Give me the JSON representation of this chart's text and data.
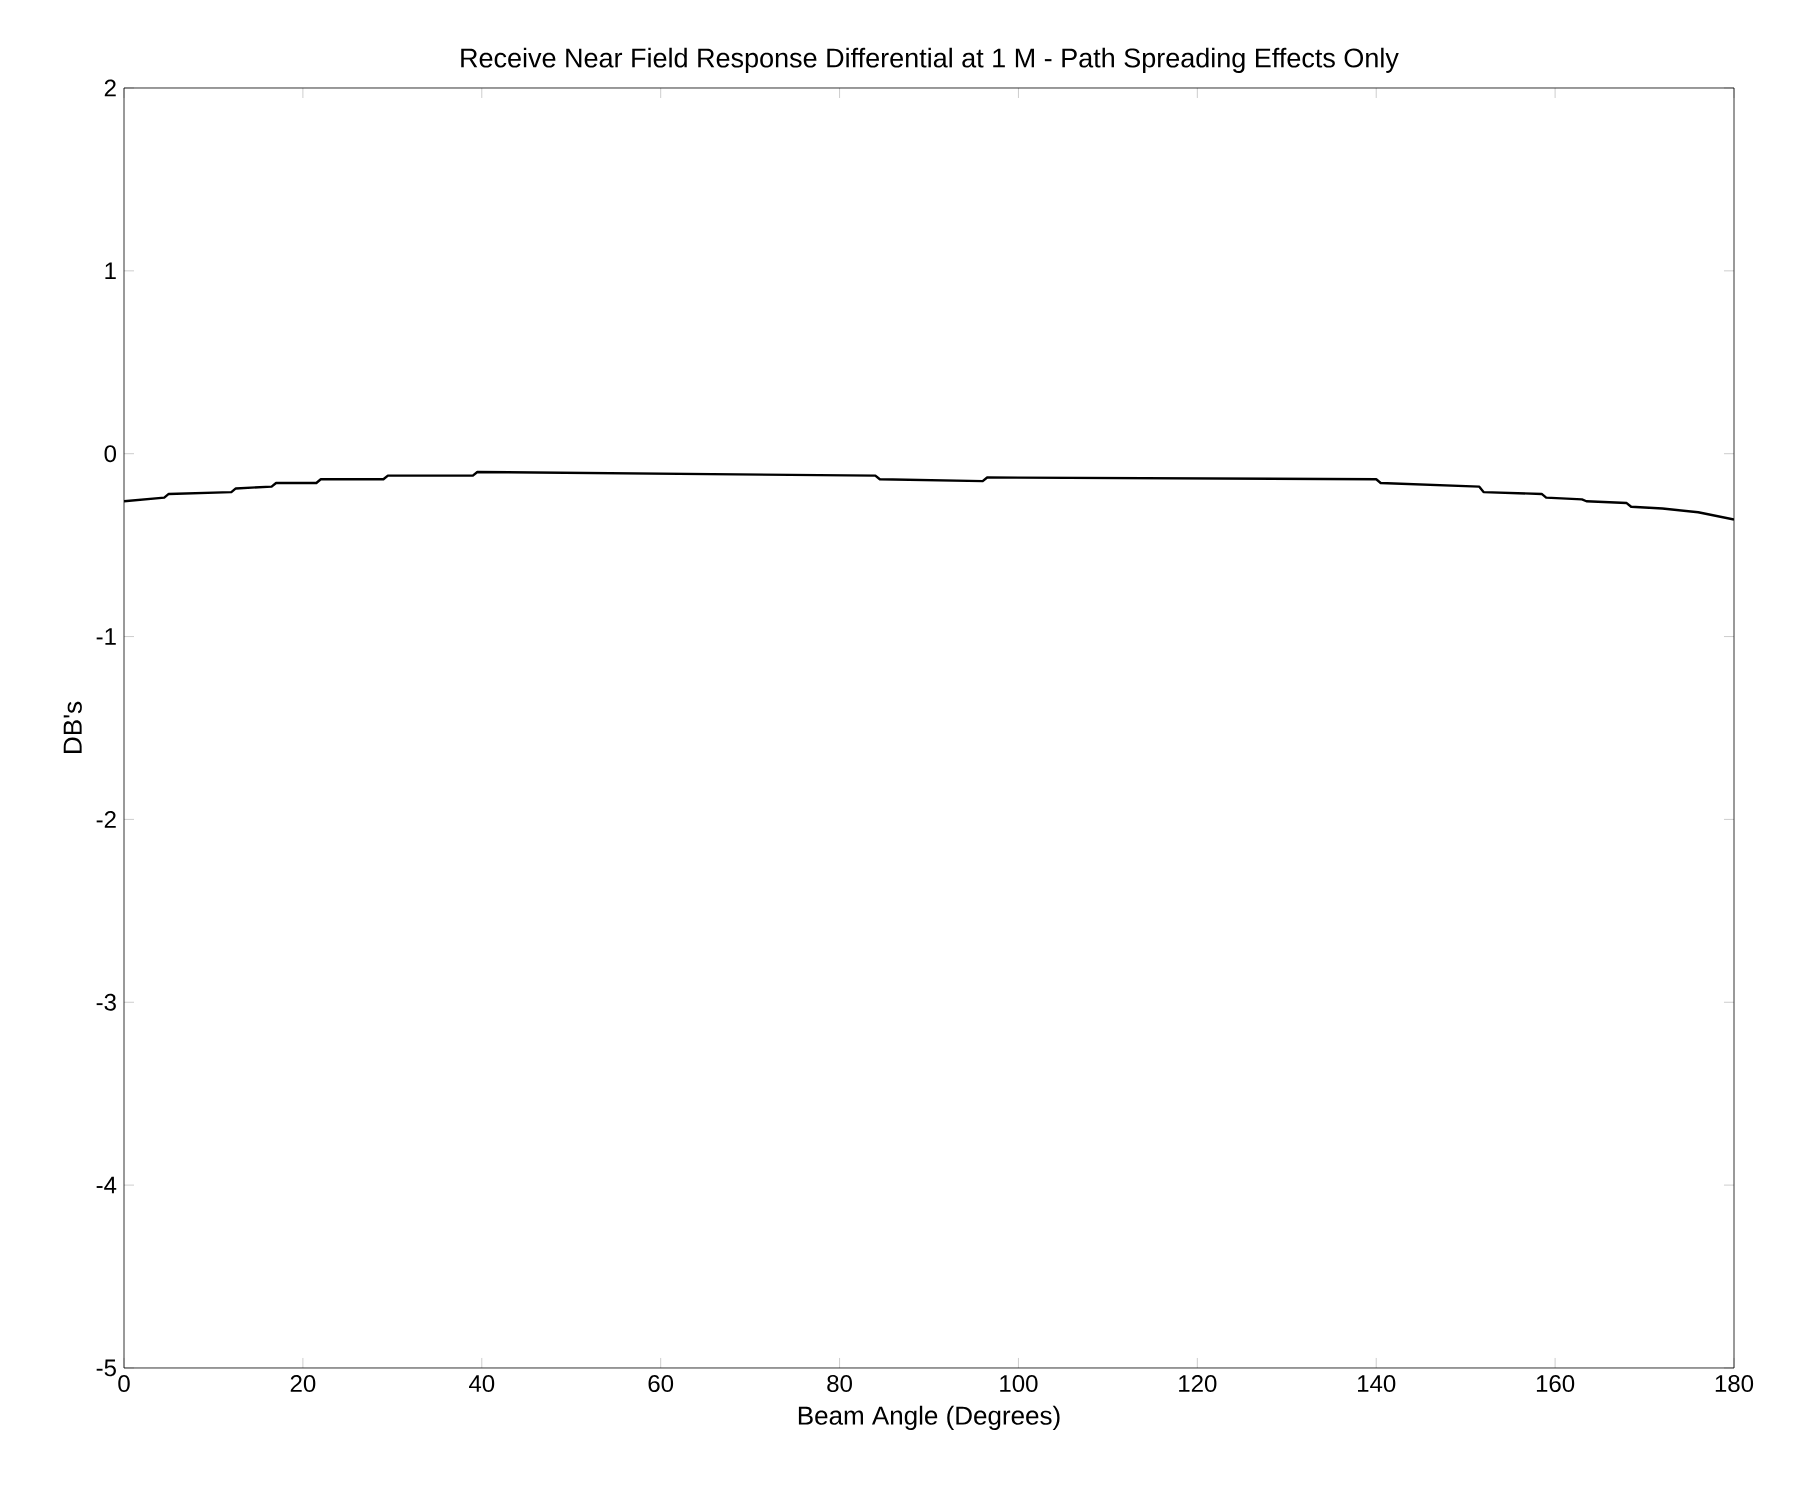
{
  "chart_data": {
    "type": "line",
    "title": "Receive Near Field Response Differential at 1 M - Path Spreading Effects Only",
    "xlabel": "Beam Angle (Degrees)",
    "ylabel": "DB's",
    "x": [
      0,
      4.5,
      5,
      12,
      12.5,
      16.5,
      17,
      21.5,
      22,
      29,
      29.5,
      39,
      39.5,
      84,
      84.5,
      96,
      96.5,
      140,
      140.5,
      151.5,
      152,
      158.5,
      159,
      163,
      163.5,
      168,
      168.5,
      172,
      176,
      180
    ],
    "series": [
      {
        "color": "#000000",
        "values": [
          -0.26,
          -0.24,
          -0.22,
          -0.21,
          -0.19,
          -0.18,
          -0.16,
          -0.16,
          -0.14,
          -0.14,
          -0.12,
          -0.12,
          -0.1,
          -0.12,
          -0.14,
          -0.15,
          -0.13,
          -0.14,
          -0.16,
          -0.18,
          -0.21,
          -0.22,
          -0.24,
          -0.25,
          -0.26,
          -0.27,
          -0.29,
          -0.3,
          -0.32,
          -0.36
        ]
      }
    ],
    "xlim": [
      0,
      180
    ],
    "ylim": [
      -5,
      2
    ],
    "xticks": [
      0,
      20,
      40,
      60,
      80,
      100,
      120,
      140,
      160,
      180
    ],
    "yticks": [
      -5,
      -4,
      -3,
      -2,
      -1,
      0,
      1,
      2
    ],
    "grid": false,
    "legend": false,
    "marker": "none",
    "line_style": "solid"
  }
}
